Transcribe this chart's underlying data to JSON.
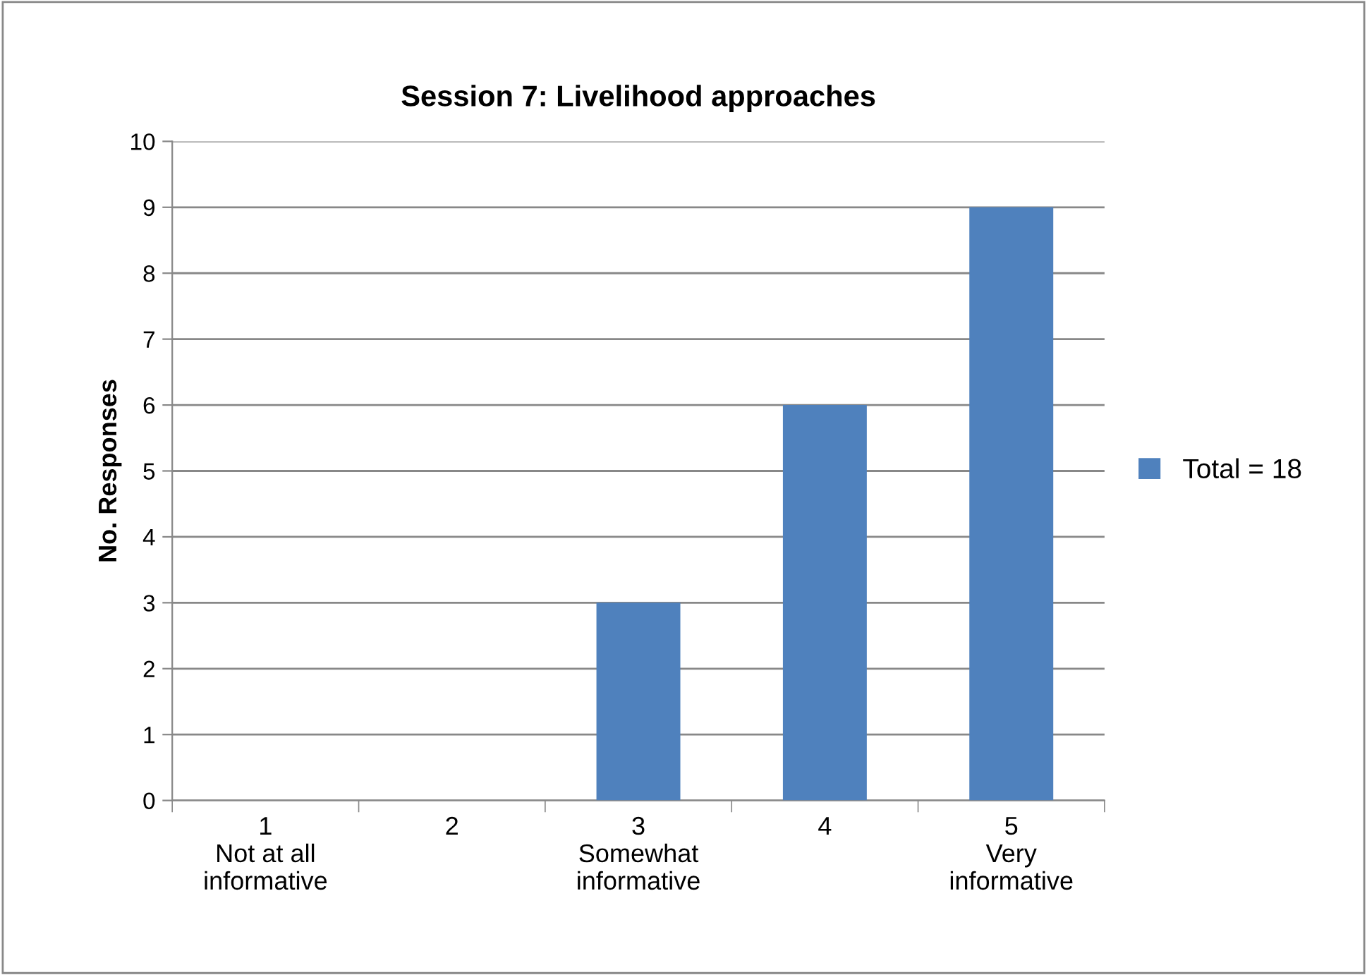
{
  "chart_data": {
    "type": "bar",
    "title": "Session 7: Livelihood approaches",
    "ylabel": "No. Responses",
    "categories": [
      "1\nNot at all\ninformative",
      "2",
      "3\nSomewhat\ninformative",
      "4",
      "5\nVery\ninformative"
    ],
    "series": [
      {
        "name": "Total = 18",
        "color": "#4f81bd",
        "values": [
          0,
          0,
          3,
          6,
          9
        ]
      }
    ],
    "ylim": [
      0,
      10
    ],
    "yticks": [
      0,
      1,
      2,
      3,
      4,
      5,
      6,
      7,
      8,
      9,
      10
    ],
    "grid": "y",
    "legend": "right"
  }
}
